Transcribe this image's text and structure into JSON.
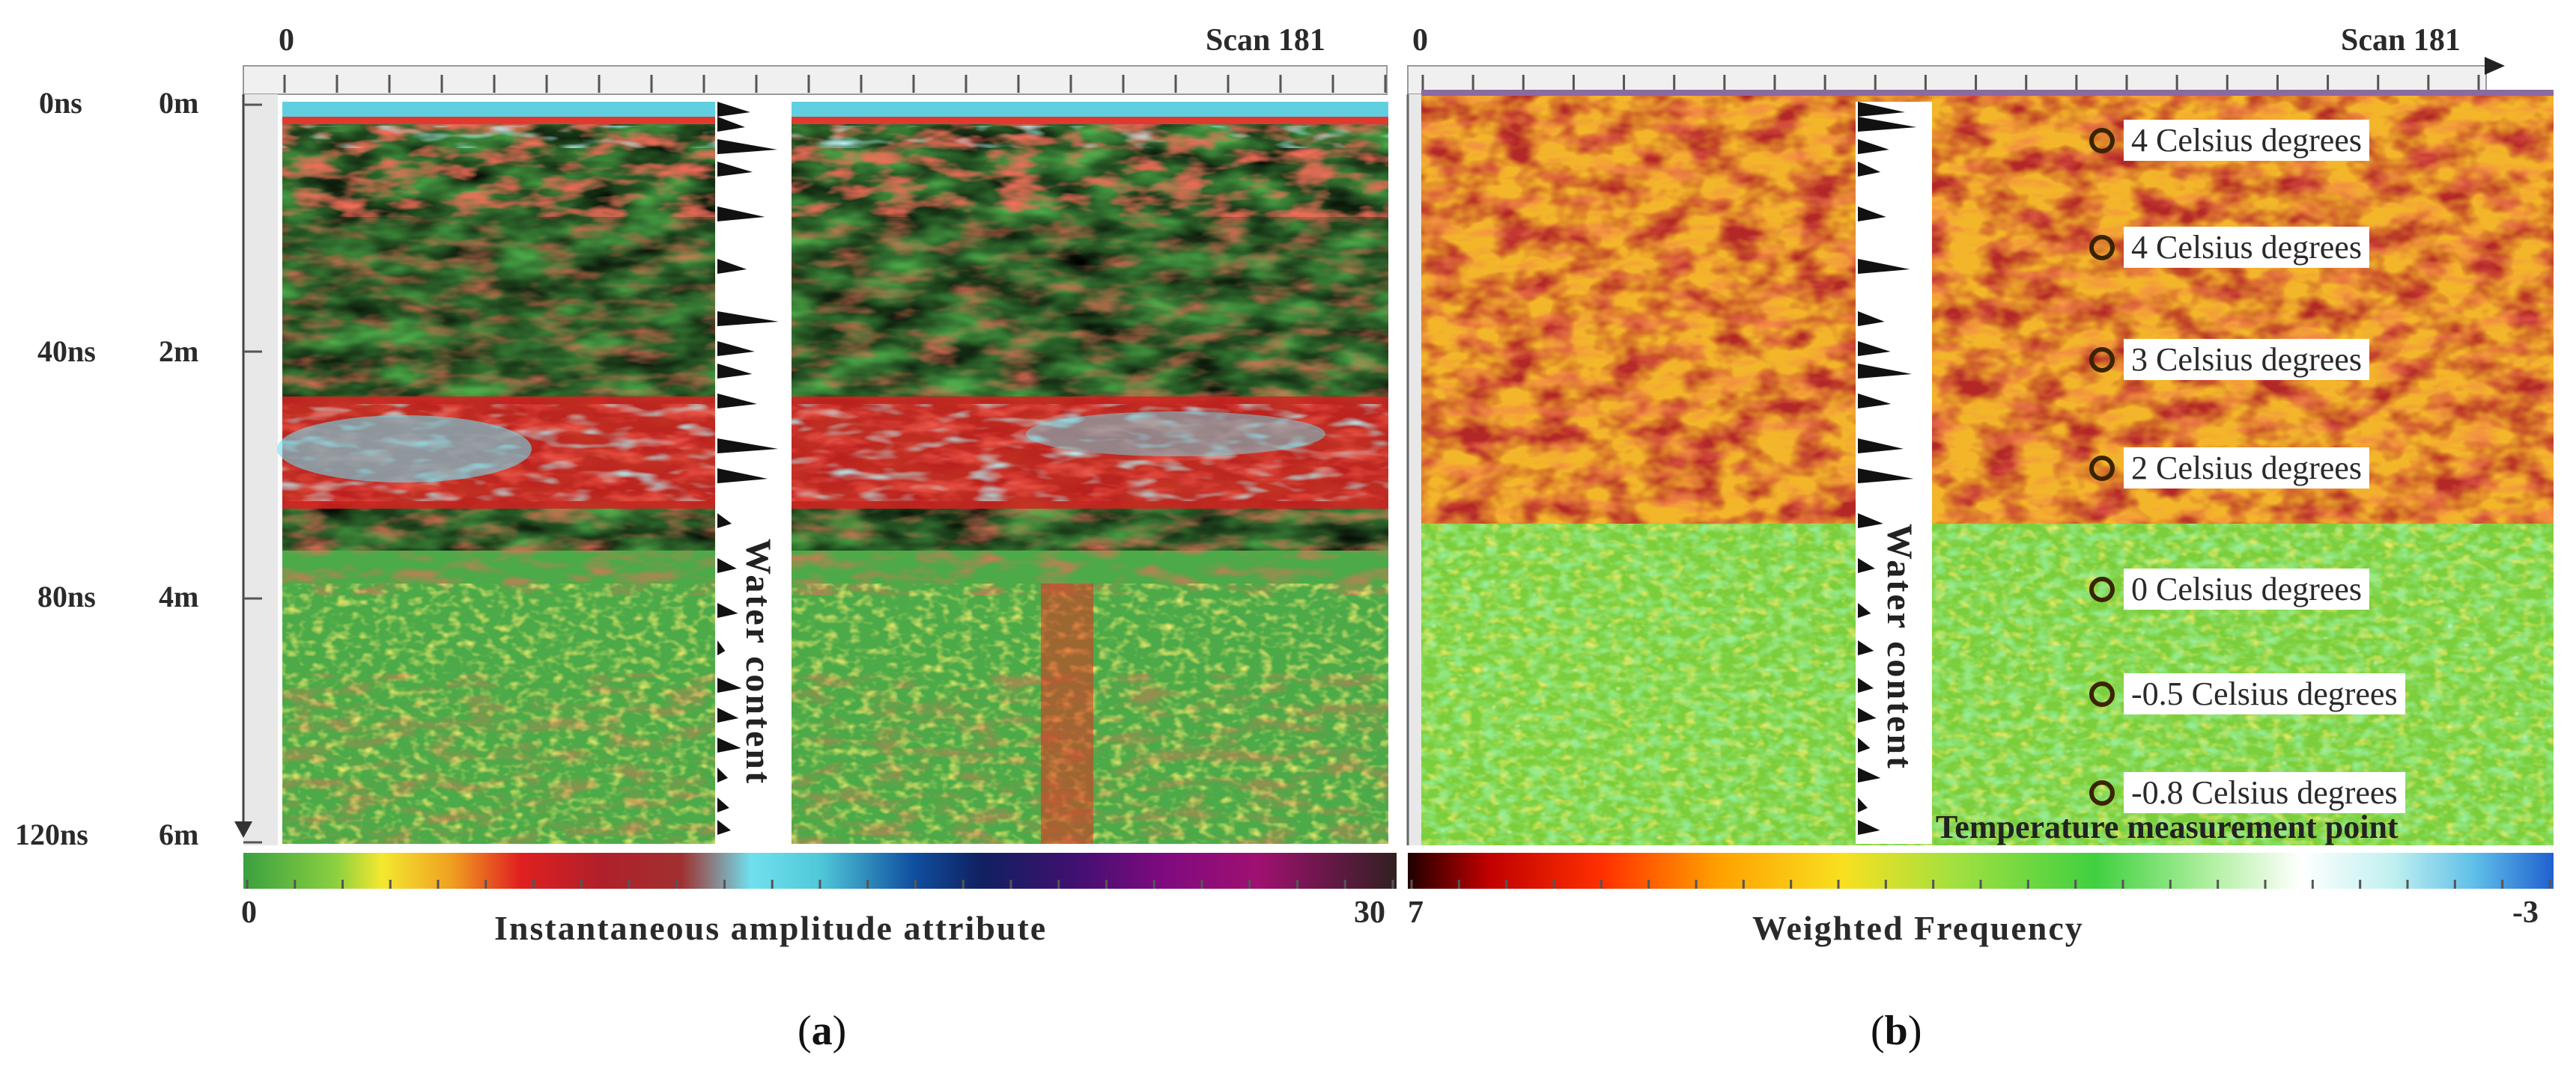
{
  "left_time_labels": [
    "0ns",
    "40ns",
    "80ns",
    "120ns"
  ],
  "depth_labels": [
    "0m",
    "2m",
    "4m",
    "6m"
  ],
  "panel_a": {
    "scan_start": "0",
    "scan_end": "Scan 181",
    "water_label": "Water content",
    "colorbar_min": "0",
    "colorbar_max": "30",
    "colorbar_title": "Instantaneous amplitude attribute",
    "colorbar_colors": [
      "#3aa040",
      "#f4e830",
      "#f0a020",
      "#e02020",
      "#b0202a",
      "#a03030",
      "#70e0ee",
      "#50c8d8",
      "#1050a0",
      "#102060",
      "#401070",
      "#800a80",
      "#a01070",
      "#302020"
    ],
    "caption_letter": "a"
  },
  "panel_b": {
    "scan_start": "0",
    "scan_end": "Scan 181",
    "water_label": "Water content",
    "colorbar_min": "7",
    "colorbar_max": "-3",
    "colorbar_title": "Weighted Frequency",
    "colorbar_colors": [
      "#200000",
      "#c00000",
      "#ff3000",
      "#ffa000",
      "#f8e020",
      "#a0e040",
      "#40d040",
      "#ffffff",
      "#c0f0f0",
      "#60c0e8",
      "#2060d0"
    ],
    "temperature_title": "Temperature measurement point",
    "temperature_points": [
      "4 Celsius degrees",
      "4 Celsius degrees",
      "3 Celsius degrees",
      "2 Celsius degrees",
      "0 Celsius degrees",
      "-0.5 Celsius degrees",
      "-0.8 Celsius degrees"
    ],
    "caption_letter": "b"
  },
  "chart_data": [
    {
      "type": "heatmap",
      "title": "",
      "xlabel": "",
      "ylabel": "",
      "x_ticks": [
        "0",
        "Scan 181"
      ],
      "y_ticks_time": [
        "0ns",
        "40ns",
        "80ns",
        "120ns"
      ],
      "y_ticks_depth": [
        "0m",
        "2m",
        "4m",
        "6m"
      ],
      "colorbar": {
        "label": "Instantaneous amplitude attribute",
        "min": 0,
        "max": 30
      },
      "annotation": "Water content"
    },
    {
      "type": "heatmap",
      "title": "",
      "xlabel": "",
      "ylabel": "",
      "x_ticks": [
        "0",
        "Scan 181"
      ],
      "colorbar": {
        "label": "Weighted Frequency",
        "min": 7,
        "max": -3
      },
      "annotation": "Water content",
      "temperature_points": [
        4,
        4,
        3,
        2,
        0,
        -0.5,
        -0.8
      ],
      "temperature_unit": "Celsius degrees"
    }
  ]
}
